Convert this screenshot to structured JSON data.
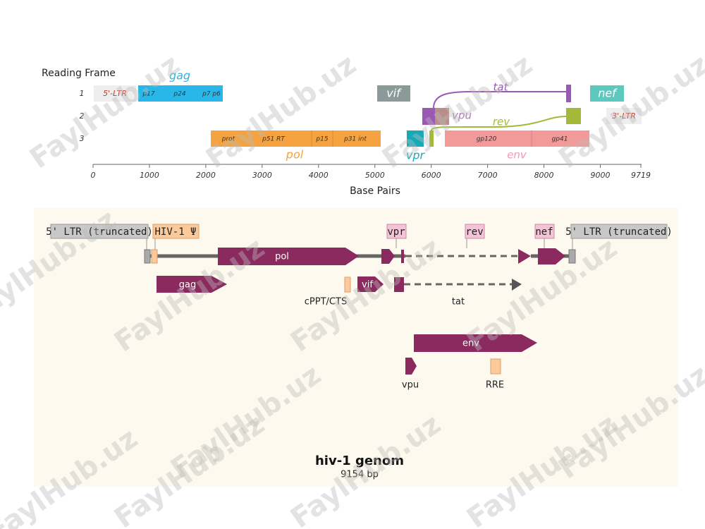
{
  "genome_map": {
    "frame_title": "Reading Frame",
    "frames": [
      "1",
      "2",
      "3"
    ],
    "features": [
      {
        "label": "5'-LTR"
      },
      {
        "label": "gag",
        "parts": [
          "p17",
          "p24",
          "p7 p6"
        ]
      },
      {
        "label": "vif"
      },
      {
        "label": "tat"
      },
      {
        "label": "nef"
      },
      {
        "label": "vpu"
      },
      {
        "label": "rev"
      },
      {
        "label": "3'-LTR"
      },
      {
        "label": "pol",
        "parts": [
          "prot",
          "p51 RT",
          "p15",
          "p31 int"
        ]
      },
      {
        "label": "vpr"
      },
      {
        "label": "env",
        "parts": [
          "gp120",
          "gp41"
        ]
      }
    ],
    "axis": {
      "title": "Base Pairs",
      "ticks": [
        0,
        1000,
        2000,
        3000,
        4000,
        5000,
        6000,
        7000,
        8000,
        9000,
        9719
      ]
    }
  },
  "plasmid_map": {
    "labels": [
      "5' LTR (truncated)",
      "HIV-1 Ψ",
      "vpr",
      "rev",
      "nef",
      "5' LTR (truncated)"
    ],
    "features": [
      "pol",
      "gag",
      "vif",
      "env"
    ],
    "under_labels": [
      "cPPT/CTS",
      "tat",
      "vpu",
      "RRE"
    ],
    "title": "hiv-1 genom",
    "size": "9154 bp"
  },
  "watermark": "FaylHub.uz"
}
